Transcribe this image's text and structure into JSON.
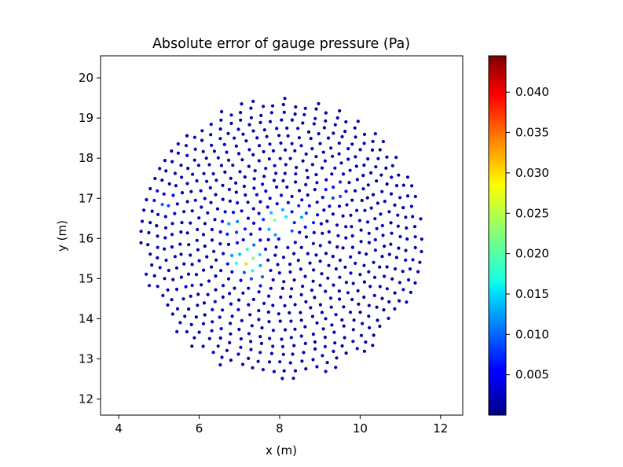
{
  "chart_data": {
    "type": "scatter",
    "title": "Absolute error of gauge pressure (Pa)",
    "xlabel": "x (m)",
    "ylabel": "y (m)",
    "xlim": [
      3.55,
      12.55
    ],
    "ylim": [
      11.6,
      20.55
    ],
    "xticks": [
      4,
      6,
      8,
      10,
      12
    ],
    "yticks": [
      12,
      13,
      14,
      15,
      16,
      17,
      18,
      19,
      20
    ],
    "grid": false,
    "colormap": "jet",
    "colorbar": {
      "min": 0.0,
      "max": 0.0445,
      "ticks": [
        0.005,
        0.01,
        0.015,
        0.02,
        0.025,
        0.03,
        0.035,
        0.04
      ],
      "tick_labels": [
        "0.005",
        "0.010",
        "0.015",
        "0.020",
        "0.025",
        "0.030",
        "0.035",
        "0.040"
      ]
    },
    "mesh": {
      "description": "Circular point cloud around a triangular hole",
      "disk_center": [
        8.05,
        16.0
      ],
      "disk_radius": 3.5,
      "hole_vertices": [
        [
          7.75,
          16.35
        ],
        [
          8.2,
          16.45
        ],
        [
          8.35,
          15.65
        ]
      ],
      "ring_spacing": 0.2,
      "typical_error": 0.002,
      "error_hotspots": [
        {
          "x": 7.2,
          "y": 15.5,
          "value": 0.034
        },
        {
          "x": 8.0,
          "y": 16.4,
          "value": 0.028
        },
        {
          "x": 6.9,
          "y": 16.3,
          "value": 0.016
        },
        {
          "x": 8.6,
          "y": 16.6,
          "value": 0.014
        },
        {
          "x": 9.4,
          "y": 17.2,
          "value": 0.012
        },
        {
          "x": 5.1,
          "y": 16.9,
          "value": 0.011
        },
        {
          "x": 7.5,
          "y": 15.1,
          "value": 0.013
        }
      ]
    }
  }
}
